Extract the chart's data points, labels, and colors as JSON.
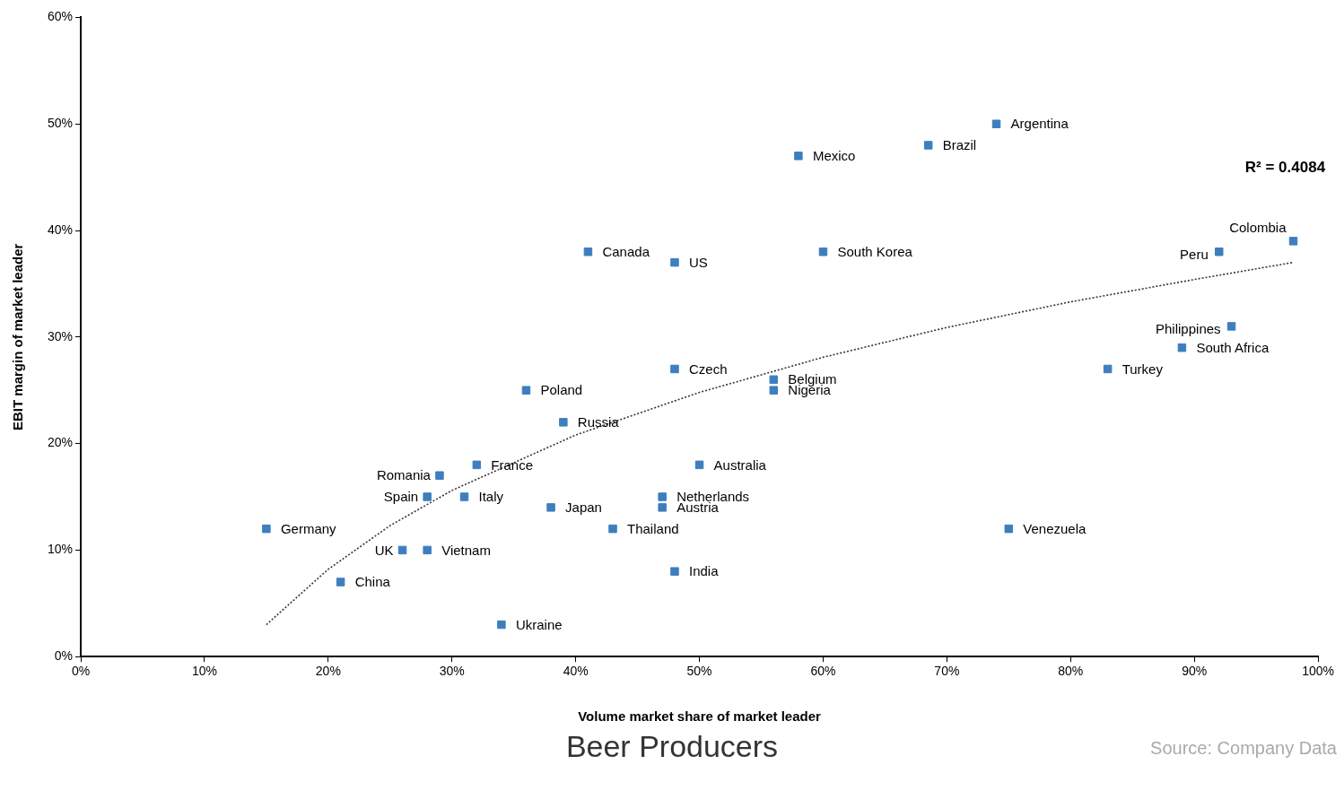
{
  "chart_data": {
    "type": "scatter",
    "title": "Beer Producers",
    "xlabel": "Volume market share of market leader",
    "ylabel": "EBIT margin of market leader",
    "xlim": [
      0,
      100
    ],
    "ylim": [
      0,
      60
    ],
    "xticks": [
      {
        "value": 0,
        "label": "0%"
      },
      {
        "value": 10,
        "label": "10%"
      },
      {
        "value": 20,
        "label": "20%"
      },
      {
        "value": 30,
        "label": "30%"
      },
      {
        "value": 40,
        "label": "40%"
      },
      {
        "value": 50,
        "label": "50%"
      },
      {
        "value": 60,
        "label": "60%"
      },
      {
        "value": 70,
        "label": "70%"
      },
      {
        "value": 80,
        "label": "80%"
      },
      {
        "value": 90,
        "label": "90%"
      },
      {
        "value": 100,
        "label": "100%"
      }
    ],
    "yticks": [
      {
        "value": 0,
        "label": "0%"
      },
      {
        "value": 10,
        "label": "10%"
      },
      {
        "value": 20,
        "label": "20%"
      },
      {
        "value": 30,
        "label": "30%"
      },
      {
        "value": 40,
        "label": "40%"
      },
      {
        "value": 50,
        "label": "50%"
      },
      {
        "value": 60,
        "label": "60%"
      }
    ],
    "grid": false,
    "legend": false,
    "marker": "square",
    "series": [
      {
        "type": "scatter",
        "color": "#3d7ebf",
        "x": [
          74,
          68.5,
          58,
          41,
          48,
          60,
          98,
          92,
          93,
          89,
          83,
          56,
          56,
          48,
          36,
          39,
          32,
          29,
          28,
          31,
          38,
          50,
          47,
          47,
          43,
          75,
          15,
          26,
          28,
          21,
          48,
          34
        ],
        "values": [
          50,
          48,
          47,
          38,
          37,
          38,
          39,
          38,
          31,
          29,
          27,
          26,
          25,
          27,
          25,
          22,
          18,
          17,
          15,
          15,
          14,
          18,
          15,
          14,
          12,
          12,
          12,
          10,
          10,
          7,
          8,
          3
        ]
      },
      {
        "type": "line",
        "color": "#333333",
        "line_style": "dotted",
        "marker": "none",
        "x": [
          15,
          20,
          25,
          30,
          40,
          50,
          60,
          70,
          80,
          90,
          98
        ],
        "values": [
          3,
          8.2,
          12.3,
          15.6,
          20.8,
          24.8,
          28.1,
          30.9,
          33.3,
          35.4,
          37
        ]
      }
    ],
    "annotations": [
      "R² = 0.4084",
      "Source: Company Data",
      {
        "text": "Argentina",
        "x": 74,
        "y": 50
      },
      {
        "text": "Brazil",
        "x": 68.5,
        "y": 48
      },
      {
        "text": "Mexico",
        "x": 58,
        "y": 47
      },
      {
        "text": "Canada",
        "x": 41,
        "y": 38
      },
      {
        "text": "US",
        "x": 48,
        "y": 37
      },
      {
        "text": "South Korea",
        "x": 60,
        "y": 38
      },
      {
        "text": "Colombia",
        "x": 98,
        "y": 39
      },
      {
        "text": "Peru",
        "x": 92,
        "y": 38
      },
      {
        "text": "Philippines",
        "x": 93,
        "y": 31
      },
      {
        "text": "South Africa",
        "x": 89,
        "y": 29
      },
      {
        "text": "Turkey",
        "x": 83,
        "y": 27
      },
      {
        "text": "Belgium",
        "x": 56,
        "y": 26
      },
      {
        "text": "Nigeria",
        "x": 56,
        "y": 25
      },
      {
        "text": "Czech",
        "x": 48,
        "y": 27
      },
      {
        "text": "Poland",
        "x": 36,
        "y": 25
      },
      {
        "text": "Russia",
        "x": 39,
        "y": 22
      },
      {
        "text": "France",
        "x": 32,
        "y": 18
      },
      {
        "text": "Romania",
        "x": 29,
        "y": 17
      },
      {
        "text": "Spain",
        "x": 28,
        "y": 15
      },
      {
        "text": "Italy",
        "x": 31,
        "y": 15
      },
      {
        "text": "Japan",
        "x": 38,
        "y": 14
      },
      {
        "text": "Australia",
        "x": 50,
        "y": 18
      },
      {
        "text": "Netherlands",
        "x": 47,
        "y": 15
      },
      {
        "text": "Austria",
        "x": 47,
        "y": 14
      },
      {
        "text": "Thailand",
        "x": 43,
        "y": 12
      },
      {
        "text": "Venezuela",
        "x": 75,
        "y": 12
      },
      {
        "text": "Germany",
        "x": 15,
        "y": 12
      },
      {
        "text": "UK",
        "x": 26,
        "y": 10
      },
      {
        "text": "Vietnam",
        "x": 28,
        "y": 10
      },
      {
        "text": "China",
        "x": 21,
        "y": 7
      },
      {
        "text": "India",
        "x": 48,
        "y": 8
      },
      {
        "text": "Ukraine",
        "x": 34,
        "y": 3
      }
    ]
  }
}
